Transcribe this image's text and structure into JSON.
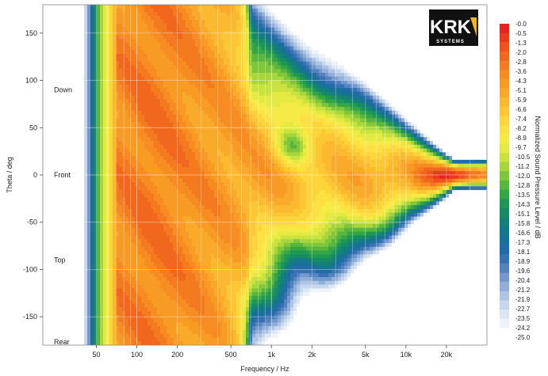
{
  "chart_data": {
    "type": "heatmap",
    "title": "",
    "xlabel": "Frequency / Hz",
    "ylabel": "Theta / deg",
    "x_scale": "log",
    "xlim": [
      20,
      40000
    ],
    "ylim": [
      -180,
      180
    ],
    "x_ticks": [
      {
        "value": 50,
        "label": "50"
      },
      {
        "value": 100,
        "label": "100"
      },
      {
        "value": 200,
        "label": "200"
      },
      {
        "value": 500,
        "label": "500"
      },
      {
        "value": 1000,
        "label": "1k"
      },
      {
        "value": 2000,
        "label": "2k"
      },
      {
        "value": 5000,
        "label": "5k"
      },
      {
        "value": 10000,
        "label": "10k"
      },
      {
        "value": 20000,
        "label": "20k"
      }
    ],
    "y_ticks": [
      150,
      100,
      50,
      0,
      -50,
      -100,
      -150
    ],
    "grid": true,
    "direction_labels": [
      {
        "text": "Down",
        "theta": 90
      },
      {
        "text": "Front",
        "theta": 0
      },
      {
        "text": "Top",
        "theta": -90
      },
      {
        "text": "Rear",
        "theta": -180
      }
    ],
    "colorbar": {
      "label": "Normalized Sound Pressure Level / dB",
      "placement": "right",
      "levels": [
        "-0.0",
        "-0.5",
        "-1.3",
        "-2.0",
        "-2.8",
        "-3.6",
        "-4.3",
        "-5.1",
        "-5.9",
        "-6.6",
        "-7.4",
        "-8.2",
        "-8.9",
        "-9.7",
        "-10.5",
        "-11.2",
        "-12.0",
        "-12.8",
        "-13.5",
        "-14.3",
        "-15.1",
        "-15.8",
        "-16.6",
        "-17.3",
        "-18.1",
        "-18.9",
        "-19.6",
        "-20.4",
        "-21.2",
        "-21.9",
        "-22.7",
        "-23.5",
        "-24.2",
        "-25.0"
      ],
      "colors": [
        "#e8231f",
        "#ec3a1e",
        "#ef521d",
        "#f2671e",
        "#f47a20",
        "#f68c22",
        "#f89b25",
        "#f9aa2a",
        "#fab92f",
        "#fbc734",
        "#fcd53a",
        "#fde143",
        "#f6ea47",
        "#e4ea42",
        "#c9e23e",
        "#a6d63b",
        "#7fc63a",
        "#58b53e",
        "#35a646",
        "#1f9854",
        "#168b66",
        "#138079",
        "#15778b",
        "#19719b",
        "#216ca8",
        "#3872b3",
        "#5583c0",
        "#7398cc",
        "#91aed8",
        "#aec4e3",
        "#c8d8ec",
        "#dde7f3",
        "#eef3f9",
        "#ffffff"
      ]
    },
    "series_notes": "Normalized SPL vs frequency (log) and theta; main lobe centered at theta 0 narrowing toward 30k Hz, broad orange region 80-600 Hz, white (below -25 dB) at high frequencies off-axis.",
    "logo": {
      "text": "KRK",
      "subtext": "SYSTEMS",
      "accent": "#f2b31b"
    }
  }
}
